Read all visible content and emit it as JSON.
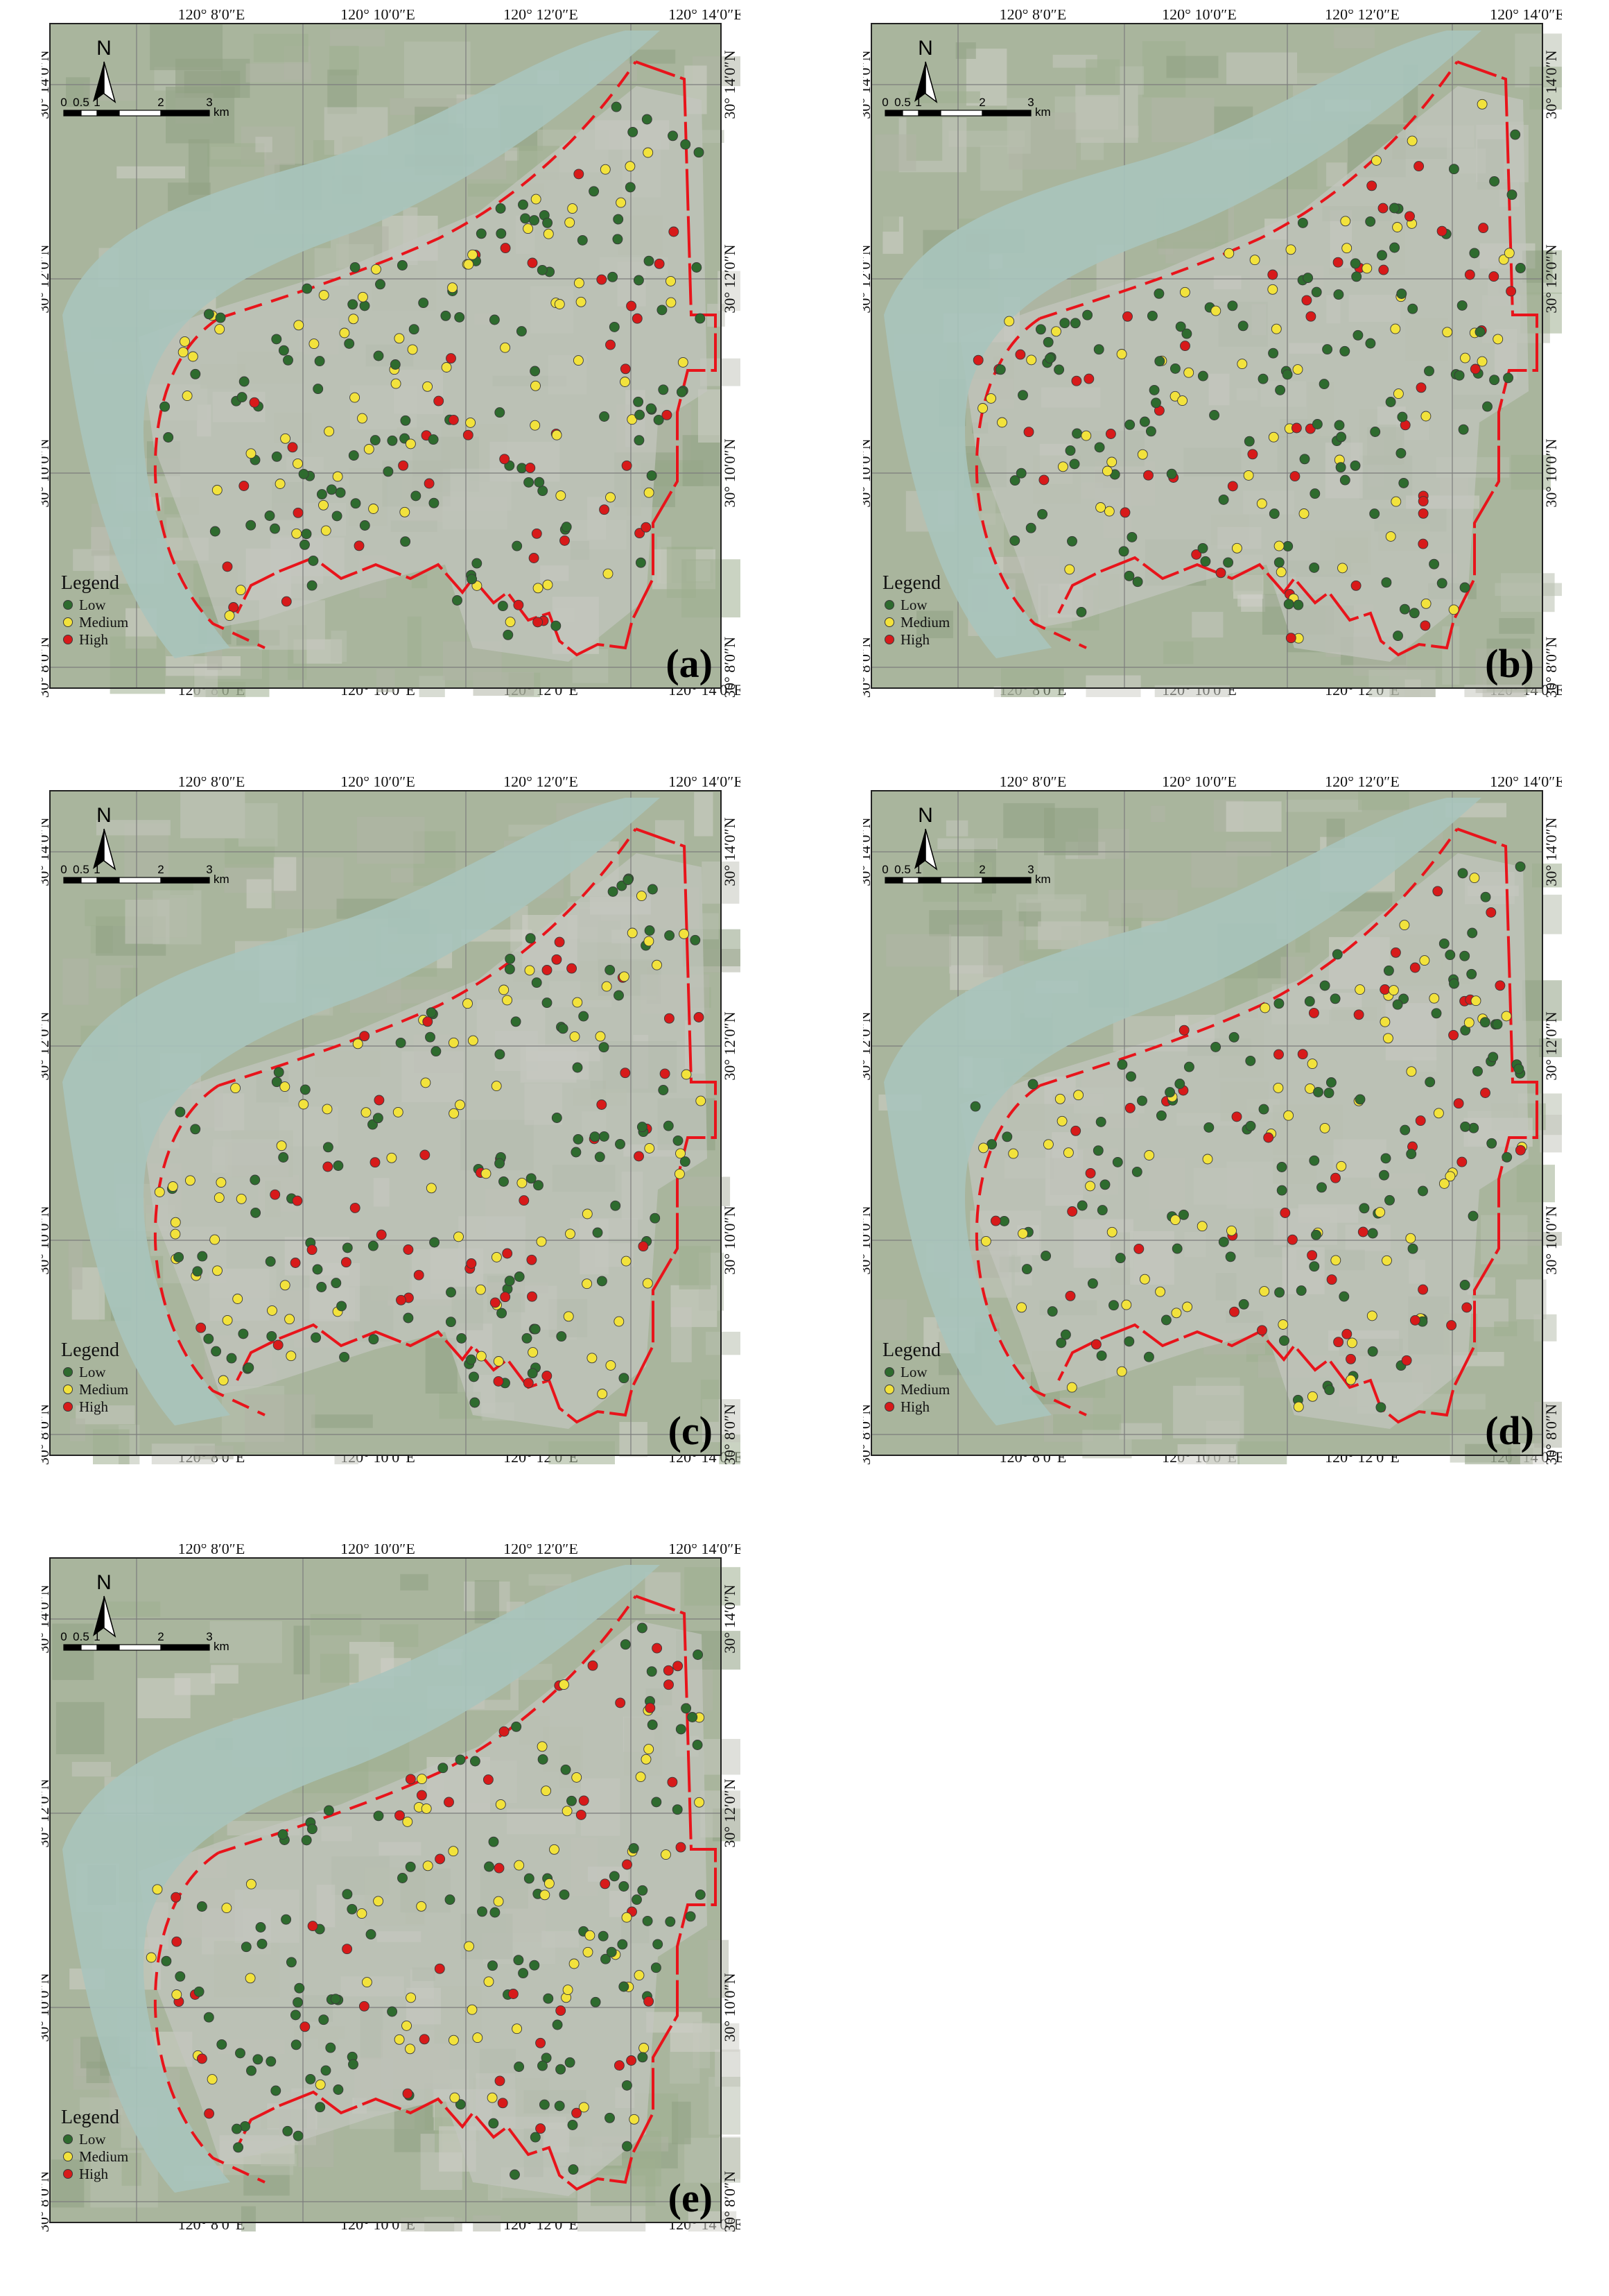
{
  "axes": {
    "x_ticks": [
      "120° 8′0″E",
      "120° 10′0″E",
      "120° 12′0″E",
      "120° 14′0″E"
    ],
    "y_ticks": [
      "30° 14′0″N",
      "30° 12′0″N",
      "30° 10′0″N",
      "30° 8′0″N"
    ]
  },
  "north_label": "N",
  "scale_bar": {
    "ticks": [
      "0",
      "0.5",
      "1",
      "2",
      "3"
    ],
    "unit": "km"
  },
  "legend": {
    "title": "Legend",
    "items": [
      {
        "label": "Low",
        "color": "#2e6b2e"
      },
      {
        "label": "Medium",
        "color": "#f2e23c"
      },
      {
        "label": "High",
        "color": "#d71a1a"
      }
    ]
  },
  "boundary_color": "#e8141b",
  "panels": [
    {
      "id": "a",
      "label": "(a)"
    },
    {
      "id": "b",
      "label": "(b)"
    },
    {
      "id": "c",
      "label": "(c)"
    },
    {
      "id": "d",
      "label": "(d)"
    },
    {
      "id": "e",
      "label": "(e)"
    }
  ]
}
